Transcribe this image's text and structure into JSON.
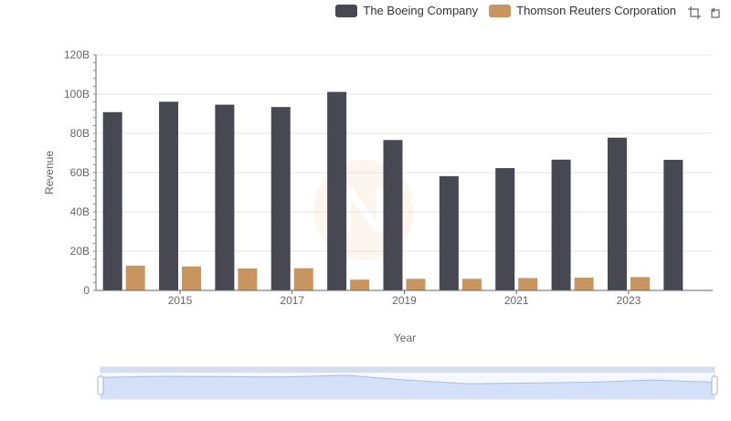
{
  "legend": {
    "items": [
      {
        "label": "The Boeing Company",
        "color": "#484853"
      },
      {
        "label": "Thomson Reuters Corporation",
        "color": "#c8955f"
      }
    ]
  },
  "toolbox": {
    "icons": [
      "zoom-icon",
      "restore-icon"
    ]
  },
  "chart_data": {
    "type": "bar",
    "categories": [
      "2014",
      "2015",
      "2016",
      "2017",
      "2018",
      "2019",
      "2020",
      "2021",
      "2022",
      "2023",
      "2024"
    ],
    "x_tick_labels": [
      "2015",
      "2017",
      "2019",
      "2021",
      "2023"
    ],
    "xlabel": "Year",
    "ylabel": "Revenue",
    "ylim": [
      0,
      120000000000
    ],
    "y_ticks": [
      {
        "value": 0,
        "label": "0"
      },
      {
        "value": 20000000000,
        "label": "20B"
      },
      {
        "value": 40000000000,
        "label": "40B"
      },
      {
        "value": 60000000000,
        "label": "60B"
      },
      {
        "value": 80000000000,
        "label": "80B"
      },
      {
        "value": 100000000000,
        "label": "100B"
      },
      {
        "value": 120000000000,
        "label": "120B"
      }
    ],
    "grid": true,
    "legend_position": "top-right",
    "series": [
      {
        "name": "The Boeing Company",
        "color": "#484853",
        "values": [
          90800000000,
          96100000000,
          94600000000,
          93400000000,
          101100000000,
          76600000000,
          58200000000,
          62300000000,
          66600000000,
          77800000000,
          66500000000
        ]
      },
      {
        "name": "Thomson Reuters Corporation",
        "color": "#c8955f",
        "values": [
          12600000000,
          12200000000,
          11200000000,
          11300000000,
          5500000000,
          5900000000,
          5900000000,
          6300000000,
          6500000000,
          6800000000,
          0
        ]
      }
    ],
    "data_zoom": {
      "range": [
        0,
        100
      ],
      "fill_color": "#d4e0f7",
      "line_color": "#a7bde9"
    }
  }
}
